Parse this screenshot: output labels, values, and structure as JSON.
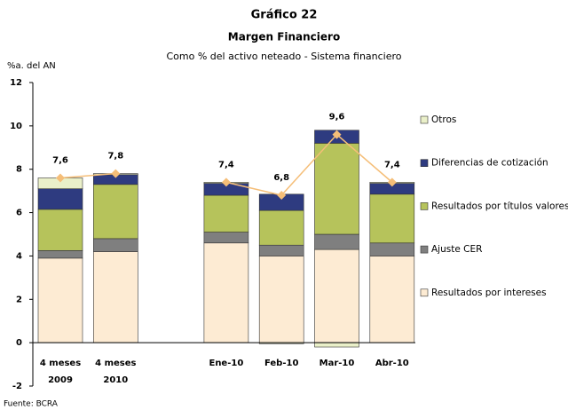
{
  "chart_data": {
    "type": "stacked_bar_line",
    "title": "Gráfico 22",
    "subtitle": "Margen Financiero",
    "caption": "Como % del activo neteado - Sistema financiero",
    "y_label": "%a. del AN",
    "source": "Fuente: BCRA",
    "categories": [
      "4 meses\n2009",
      "4 meses\n2010",
      null,
      "Ene-10",
      "Feb-10",
      "Mar-10",
      "Abr-10"
    ],
    "series": [
      {
        "name": "Resultados por intereses",
        "color": "#fdebd3",
        "values": [
          3.9,
          4.2,
          null,
          4.6,
          4.0,
          4.3,
          4.0
        ]
      },
      {
        "name": "Ajuste CER",
        "color": "#7f7f7f",
        "values": [
          0.35,
          0.6,
          null,
          0.5,
          0.5,
          0.7,
          0.6
        ]
      },
      {
        "name": "Resultados por títulos valores",
        "color": "#b6c35b",
        "values": [
          1.9,
          2.5,
          null,
          1.7,
          1.6,
          4.2,
          2.25
        ]
      },
      {
        "name": "Diferencias de cotización",
        "color": "#2e3b80",
        "values": [
          0.95,
          0.45,
          null,
          0.55,
          0.75,
          0.6,
          0.5
        ]
      },
      {
        "name": "Otros",
        "color": "#eaf0c9",
        "values": [
          0.5,
          0.05,
          null,
          0.05,
          -0.05,
          -0.2,
          0.05
        ]
      }
    ],
    "line": {
      "color": "#f5be78",
      "values": [
        7.6,
        7.8,
        null,
        7.4,
        6.8,
        9.6,
        7.4
      ],
      "value_labels": [
        "7,6",
        "7,8",
        null,
        "7,4",
        "6,8",
        "9,6",
        "7,4"
      ]
    },
    "ylim": [
      -2,
      12
    ],
    "yticks": [
      -2,
      0,
      2,
      4,
      6,
      8,
      10,
      12
    ],
    "legend": "right"
  }
}
